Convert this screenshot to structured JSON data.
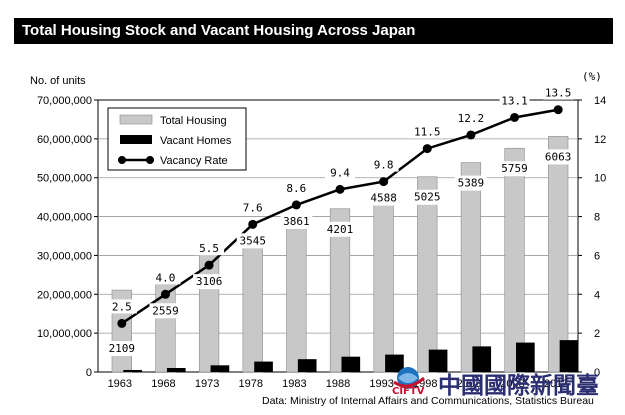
{
  "header": {
    "title": "Total Housing Stock and Vacant Housing Across Japan"
  },
  "source": "Data: Ministry of Internal Affairs and Communications, Statistics Bureau",
  "watermark": {
    "name": "中國國際新聞臺",
    "brand": "CIFTV",
    "color": "#2b2f72"
  },
  "chart_data": {
    "type": "bar",
    "title": "Total Housing Stock and Vacant Housing Across Japan",
    "categories": [
      "1963",
      "1968",
      "1973",
      "1978",
      "1983",
      "1988",
      "1993",
      "1998",
      "2003",
      "2008",
      "2013"
    ],
    "y_left_label": "No. of units",
    "y_right_label": "(%)",
    "ylim_left": [
      0,
      70000000
    ],
    "ylim_right": [
      0,
      14
    ],
    "y_left_ticks": [
      "0",
      "10,000,000",
      "20,000,000",
      "30,000,000",
      "40,000,000",
      "50,000,000",
      "60,000,000",
      "70,000,000"
    ],
    "y_right_ticks": [
      "0",
      "2",
      "4",
      "6",
      "8",
      "10",
      "12",
      "14"
    ],
    "grid": true,
    "legend_position": "top-left",
    "series": [
      {
        "name": "Total Housing",
        "kind": "bar",
        "color": "#c8c8c8",
        "values": [
          21090000,
          25590000,
          31060000,
          35450000,
          38610000,
          42010000,
          45880000,
          50250000,
          53890000,
          57590000,
          60630000
        ],
        "labels": [
          "2109",
          "2559",
          "3106",
          "3545",
          "3861",
          "4201",
          "4588",
          "5025",
          "5389",
          "5759",
          "6063"
        ]
      },
      {
        "name": "Vacant Homes",
        "kind": "bar",
        "color": "#000000",
        "values": [
          520000,
          1030000,
          1720000,
          2680000,
          3300000,
          3940000,
          4480000,
          5760000,
          6590000,
          7570000,
          8200000
        ]
      },
      {
        "name": "Vacancy Rate",
        "kind": "line",
        "axis": "right",
        "color": "#000000",
        "values": [
          2.5,
          4.0,
          5.5,
          7.6,
          8.6,
          9.4,
          9.8,
          11.5,
          12.2,
          13.1,
          13.5
        ],
        "labels": [
          "2.5",
          "4.0",
          "5.5",
          "7.6",
          "8.6",
          "9.4",
          "9.8",
          "11.5",
          "12.2",
          "13.1",
          "13.5"
        ]
      }
    ]
  }
}
